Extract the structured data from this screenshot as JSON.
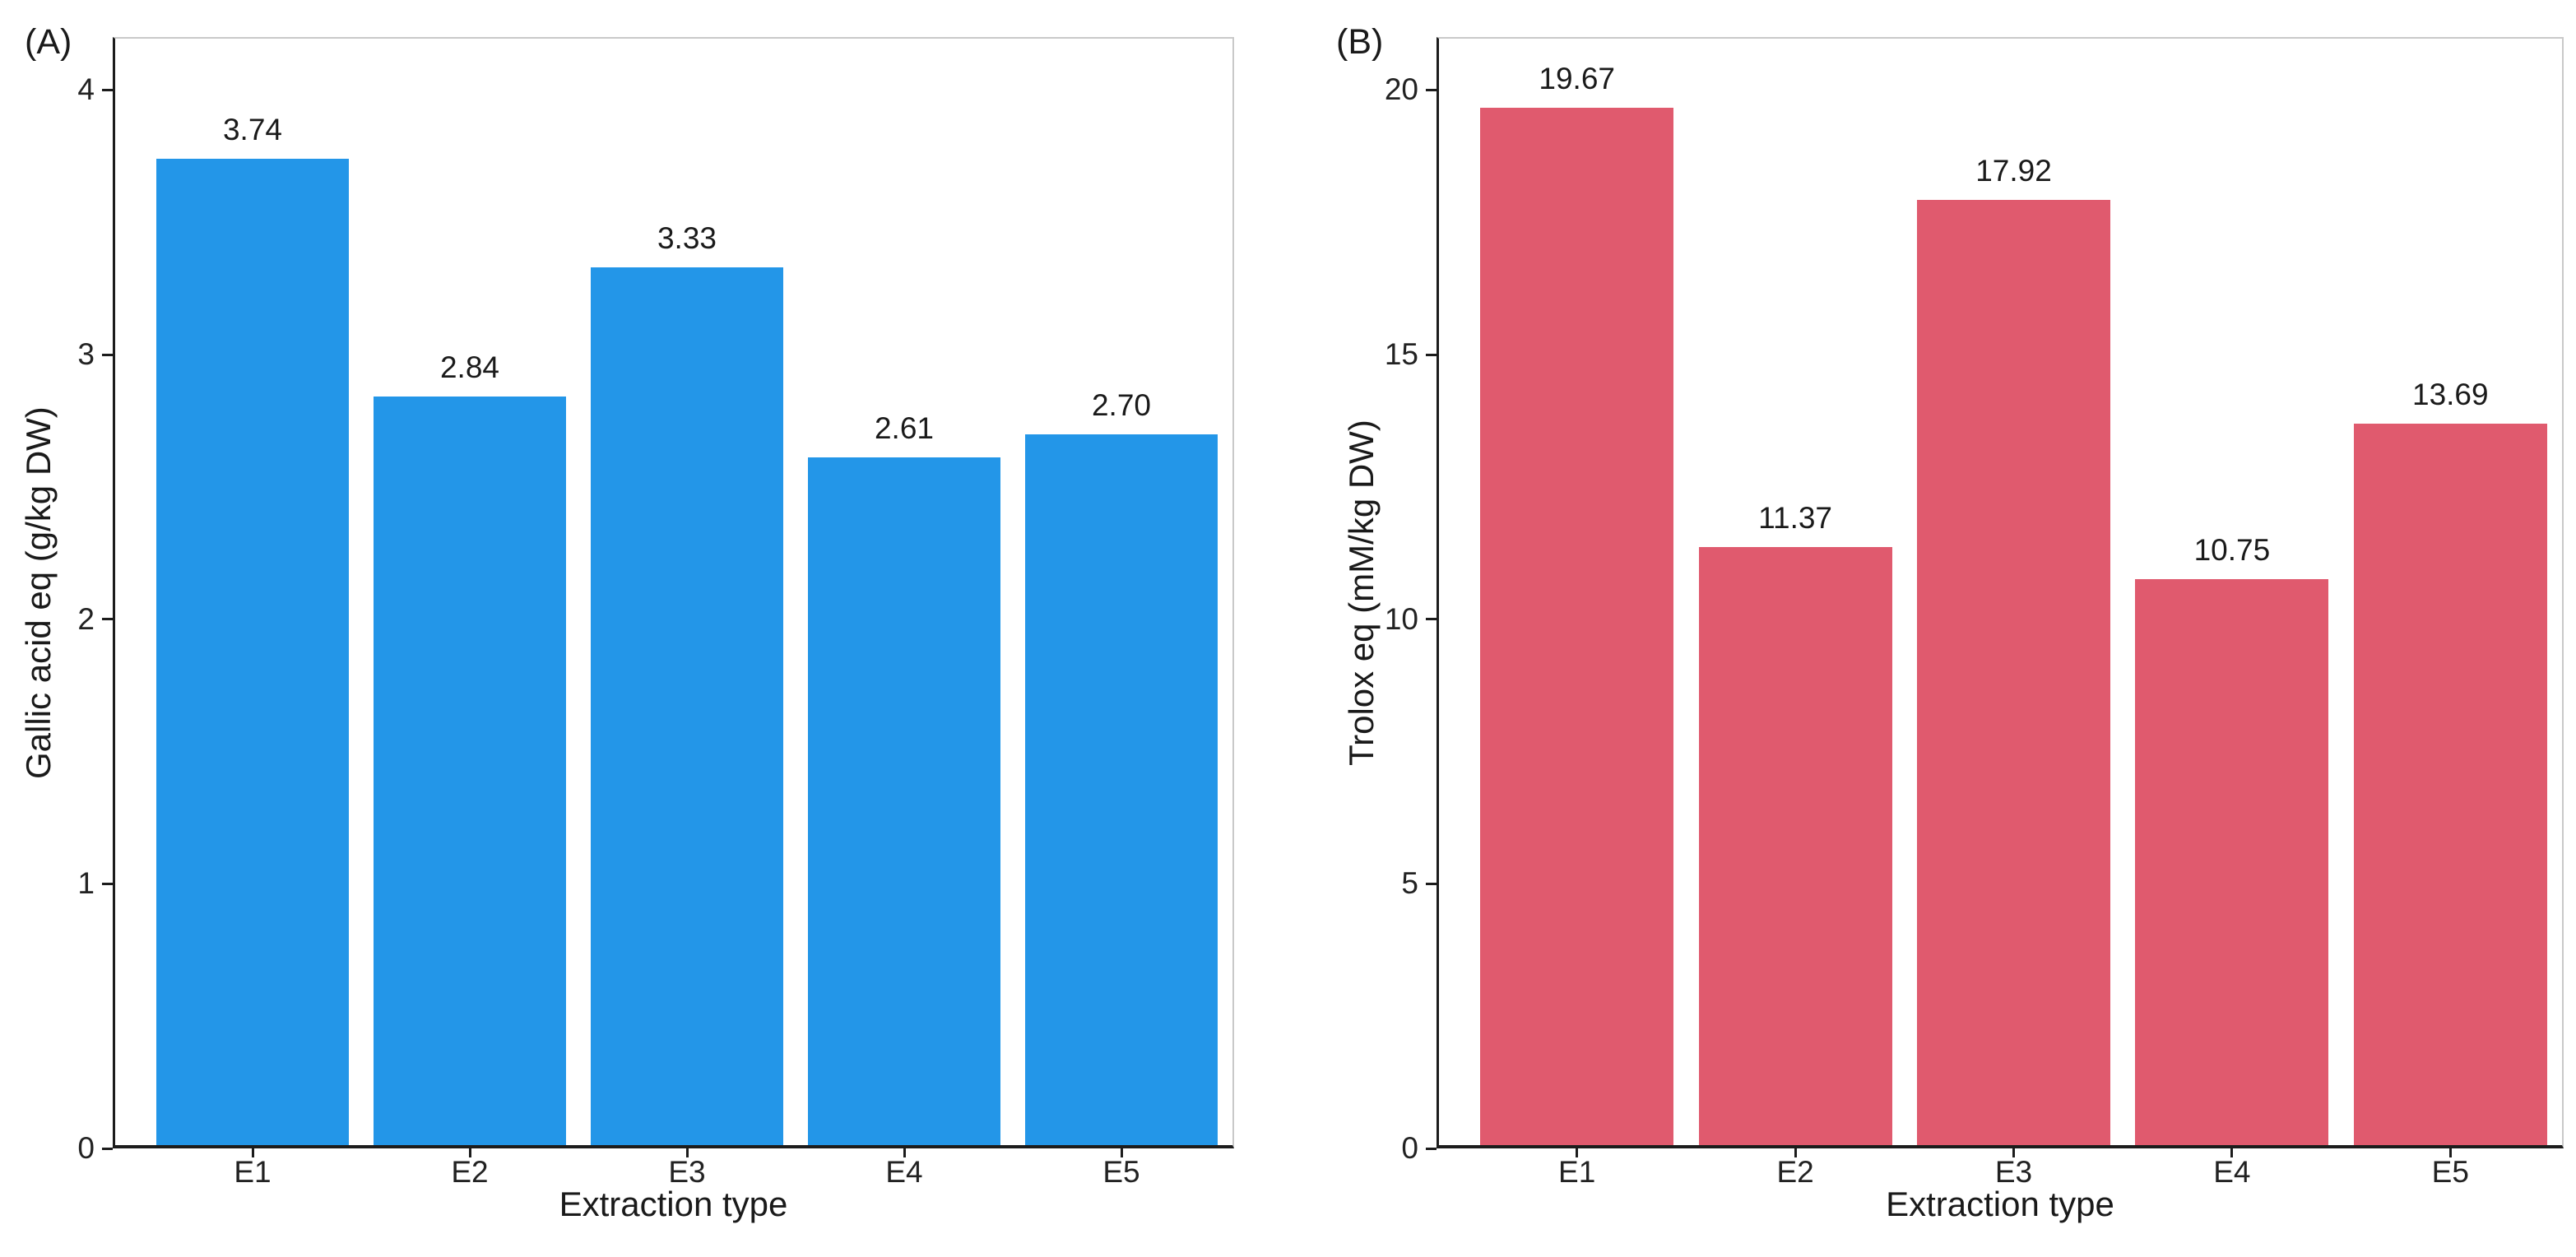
{
  "figure_type": "two-panel bar chart",
  "panels": {
    "a": {
      "letter": "(A)",
      "ylabel": "Gallic acid eq (g/kg DW)",
      "xlabel": "Extraction type"
    },
    "b": {
      "letter": "(B)",
      "ylabel": "Trolox eq (mM/kg DW)",
      "xlabel": "Extraction type"
    }
  },
  "chart_data": [
    {
      "type": "bar",
      "panel_letter": "(A)",
      "categories": [
        "E1",
        "E2",
        "E3",
        "E4",
        "E5"
      ],
      "values": [
        3.74,
        2.84,
        3.33,
        2.61,
        2.7
      ],
      "bar_labels": [
        "3.74",
        "2.84",
        "3.33",
        "2.61",
        "2.70"
      ],
      "title": "",
      "xlabel": "Extraction type",
      "ylabel": "Gallic acid eq (g/kg DW)",
      "yticks": [
        0,
        1,
        2,
        3,
        4
      ],
      "ylim": [
        0,
        4.2
      ],
      "bar_color": "#2396E8",
      "grid": false,
      "legend": false
    },
    {
      "type": "bar",
      "panel_letter": "(B)",
      "categories": [
        "E1",
        "E2",
        "E3",
        "E4",
        "E5"
      ],
      "values": [
        19.67,
        11.37,
        17.92,
        10.75,
        13.69
      ],
      "bar_labels": [
        "19.67",
        "11.37",
        "17.92",
        "10.75",
        "13.69"
      ],
      "title": "",
      "xlabel": "Extraction type",
      "ylabel": "Trolox eq (mM/kg DW)",
      "yticks": [
        0,
        5,
        10,
        15,
        20
      ],
      "ylim": [
        0,
        21
      ],
      "bar_color": "#E05A6E",
      "grid": false,
      "legend": false
    }
  ],
  "colors": {
    "background": "#ffffff",
    "spine_dark": "#1c1c1c",
    "spine_light": "#c9c9c9",
    "text": "#1a1a1a",
    "bar_blue": "#2396E8",
    "bar_red": "#E05A6E"
  }
}
